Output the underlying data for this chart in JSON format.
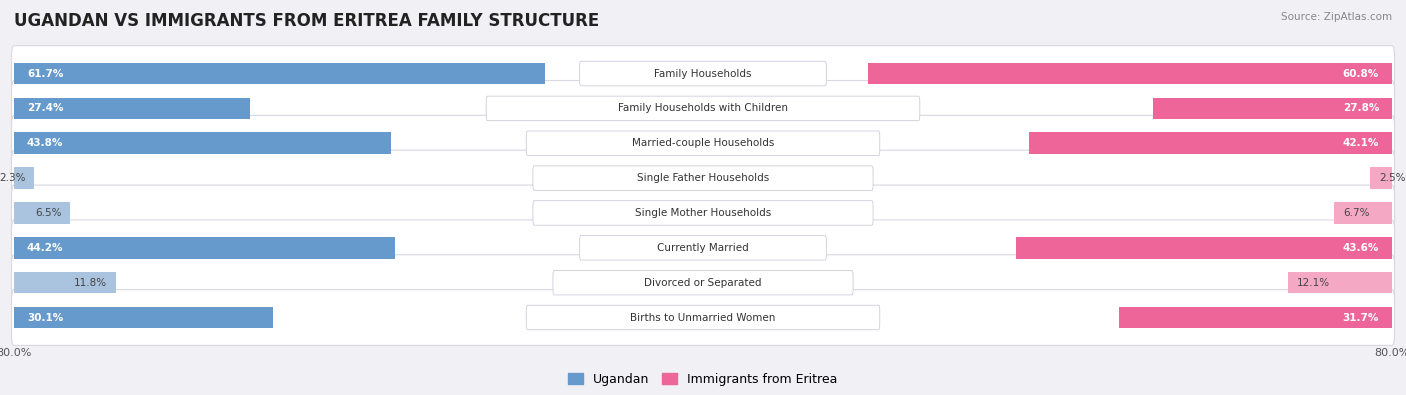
{
  "title": "UGANDAN VS IMMIGRANTS FROM ERITREA FAMILY STRUCTURE",
  "source": "Source: ZipAtlas.com",
  "categories": [
    "Family Households",
    "Family Households with Children",
    "Married-couple Households",
    "Single Father Households",
    "Single Mother Households",
    "Currently Married",
    "Divorced or Separated",
    "Births to Unmarried Women"
  ],
  "ugandan_values": [
    61.7,
    27.4,
    43.8,
    2.3,
    6.5,
    44.2,
    11.8,
    30.1
  ],
  "eritrea_values": [
    60.8,
    27.8,
    42.1,
    2.5,
    6.7,
    43.6,
    12.1,
    31.7
  ],
  "ugandan_strong_color": "#6699cc",
  "ugandan_light_color": "#aac4e0",
  "eritrea_strong_color": "#ee6699",
  "eritrea_light_color": "#f4a8c4",
  "row_bg_color": "#f7f7fa",
  "outer_bg_color": "#ebebf0",
  "fig_bg_color": "#f0f0f5",
  "max_value": 80.0,
  "title_fontsize": 12,
  "label_fontsize": 7.5,
  "value_fontsize": 7.5,
  "tick_fontsize": 8,
  "legend_fontsize": 9,
  "strong_threshold": 20.0
}
